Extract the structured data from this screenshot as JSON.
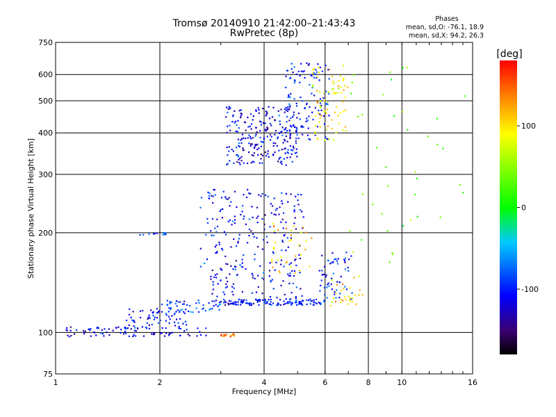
{
  "chart_data": {
    "type": "scatter",
    "title": "Tromsø 20140910 21:42:00–21:43:43",
    "subtitle": "RwPretec (8p)",
    "xlabel": "Frequency [MHz]",
    "ylabel": "Stationary phase Virtual Height [km]",
    "xscale": "log",
    "yscale": "log",
    "xlim": [
      1,
      16
    ],
    "ylim": [
      75,
      750
    ],
    "xticks": [
      1,
      2,
      4,
      6,
      8,
      10,
      16
    ],
    "xtick_labels": [
      "1",
      "2",
      "4",
      "6",
      "8",
      "10",
      "16"
    ],
    "yticks": [
      75,
      100,
      200,
      300,
      400,
      500,
      600,
      750
    ],
    "ytick_labels": [
      "75",
      "100",
      "200",
      "300",
      "400",
      "500",
      "600",
      "750"
    ],
    "grid": true,
    "colorbar": {
      "label": "[deg]",
      "range": [
        -180,
        180
      ],
      "ticks": [
        100,
        0,
        -100
      ],
      "tick_labels": [
        "100",
        "0",
        "-100"
      ]
    },
    "annotation": {
      "heading": "Phases",
      "line1": "mean, sd,O: -76.1, 18.9",
      "line2": "mean, sd,X:  94.2, 26.3"
    },
    "clusters": [
      {
        "x_range": [
          1.05,
          2.75
        ],
        "y_range": [
          97,
          104
        ],
        "phase_mean": -110,
        "n": 90
      },
      {
        "x_range": [
          1.6,
          2.4
        ],
        "y_range": [
          104,
          118
        ],
        "phase_mean": -110,
        "n": 60
      },
      {
        "x_range": [
          2.0,
          3.0
        ],
        "y_range": [
          115,
          125
        ],
        "phase_mean": -85,
        "n": 50
      },
      {
        "x_range": [
          3.0,
          3.3
        ],
        "y_range": [
          97,
          99
        ],
        "phase_mean": 135,
        "n": 15
      },
      {
        "x_range": [
          1.75,
          2.1
        ],
        "y_range": [
          197,
          200
        ],
        "phase_mean": -75,
        "n": 12
      },
      {
        "x_range": [
          2.6,
          3.0
        ],
        "y_range": [
          145,
          265
        ],
        "phase_mean": -95,
        "n": 25
      },
      {
        "x_range": [
          2.8,
          5.2
        ],
        "y_range": [
          120,
          270
        ],
        "phase_mean": -110,
        "n": 260
      },
      {
        "x_range": [
          3.0,
          6.0
        ],
        "y_range": [
          121,
          126
        ],
        "phase_mean": -100,
        "n": 110
      },
      {
        "x_range": [
          4.2,
          5.5
        ],
        "y_range": [
          150,
          215
        ],
        "phase_mean": 110,
        "n": 35
      },
      {
        "x_range": [
          5.7,
          7.2
        ],
        "y_range": [
          125,
          175
        ],
        "phase_mean": -95,
        "n": 60
      },
      {
        "x_range": [
          6.2,
          7.8
        ],
        "y_range": [
          120,
          150
        ],
        "phase_mean": 105,
        "n": 30
      },
      {
        "x_range": [
          3.1,
          5.0
        ],
        "y_range": [
          320,
          480
        ],
        "phase_mean": -115,
        "n": 240
      },
      {
        "x_range": [
          4.6,
          6.2
        ],
        "y_range": [
          380,
          650
        ],
        "phase_mean": -100,
        "n": 120
      },
      {
        "x_range": [
          5.5,
          7.0
        ],
        "y_range": [
          380,
          650
        ],
        "phase_mean": 95,
        "n": 80
      },
      {
        "x_range": [
          7.0,
          15.5
        ],
        "y_range": [
          150,
          650
        ],
        "phase_mean": 30,
        "n": 40
      }
    ]
  }
}
